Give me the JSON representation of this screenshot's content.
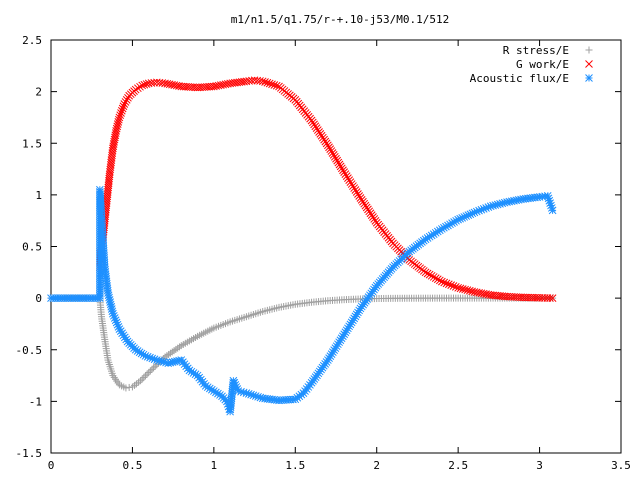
{
  "chart_data": {
    "type": "scatter",
    "title": "m1/n1.5/q1.75/r-+.10-j53/M0.1/512",
    "xlabel": "",
    "ylabel": "",
    "xlim": [
      0,
      3.5
    ],
    "ylim": [
      -1.5,
      2.5
    ],
    "x_ticks": [
      "0",
      "0.5",
      "1",
      "1.5",
      "2",
      "2.5",
      "3",
      "3.5"
    ],
    "y_ticks": [
      "2.5",
      "2",
      "1.5",
      "1",
      "0.5",
      "0",
      "-0.5",
      "-1",
      "-1.5"
    ],
    "grid": false,
    "legend_position": "top-right",
    "series": [
      {
        "name": "R stress/E",
        "marker": "plus",
        "color": "#a0a0a0",
        "x": [
          0.0,
          0.3,
          0.31,
          0.33,
          0.35,
          0.38,
          0.42,
          0.46,
          0.5,
          0.55,
          0.6,
          0.7,
          0.8,
          0.9,
          1.0,
          1.1,
          1.2,
          1.3,
          1.4,
          1.5,
          1.6,
          1.7,
          1.8,
          1.9,
          2.0,
          2.1,
          2.2,
          2.4,
          2.6,
          2.8,
          3.0,
          3.08
        ],
        "y": [
          0.0,
          0.0,
          -0.18,
          -0.4,
          -0.6,
          -0.75,
          -0.84,
          -0.87,
          -0.86,
          -0.8,
          -0.72,
          -0.57,
          -0.46,
          -0.37,
          -0.29,
          -0.23,
          -0.18,
          -0.13,
          -0.09,
          -0.06,
          -0.04,
          -0.025,
          -0.015,
          -0.008,
          -0.004,
          -0.002,
          -0.001,
          0.0,
          0.0,
          0.0,
          0.0,
          0.0
        ]
      },
      {
        "name": "G work/E",
        "marker": "cross",
        "color": "#ff0000",
        "x": [
          0.3,
          0.32,
          0.34,
          0.36,
          0.38,
          0.4,
          0.42,
          0.45,
          0.48,
          0.52,
          0.56,
          0.6,
          0.65,
          0.7,
          0.8,
          0.9,
          1.0,
          1.1,
          1.2,
          1.25,
          1.3,
          1.4,
          1.5,
          1.6,
          1.7,
          1.8,
          1.9,
          2.0,
          2.1,
          2.2,
          2.3,
          2.4,
          2.5,
          2.6,
          2.7,
          2.8,
          2.9,
          3.0,
          3.08
        ],
        "y": [
          0.3,
          0.6,
          0.9,
          1.2,
          1.45,
          1.62,
          1.75,
          1.88,
          1.96,
          2.02,
          2.06,
          2.08,
          2.09,
          2.08,
          2.05,
          2.04,
          2.05,
          2.08,
          2.1,
          2.11,
          2.1,
          2.05,
          1.92,
          1.72,
          1.48,
          1.22,
          0.97,
          0.73,
          0.53,
          0.37,
          0.25,
          0.16,
          0.1,
          0.06,
          0.03,
          0.015,
          0.007,
          0.003,
          0.0
        ]
      },
      {
        "name": "Acoustic flux/E",
        "marker": "star",
        "color": "#1e90ff",
        "x": [
          0.0,
          0.1,
          0.2,
          0.3,
          0.3,
          0.31,
          0.32,
          0.33,
          0.35,
          0.38,
          0.42,
          0.47,
          0.52,
          0.58,
          0.65,
          0.72,
          0.8,
          0.85,
          0.9,
          0.95,
          1.0,
          1.05,
          1.08,
          1.1,
          1.12,
          1.15,
          1.2,
          1.3,
          1.4,
          1.5,
          1.55,
          1.6,
          1.7,
          1.8,
          1.9,
          2.0,
          2.1,
          2.2,
          2.3,
          2.4,
          2.5,
          2.6,
          2.7,
          2.8,
          2.9,
          3.0,
          3.05,
          3.08
        ],
        "y": [
          0.0,
          0.0,
          0.0,
          0.0,
          1.05,
          0.8,
          0.55,
          0.3,
          0.05,
          -0.15,
          -0.3,
          -0.42,
          -0.5,
          -0.56,
          -0.6,
          -0.63,
          -0.6,
          -0.7,
          -0.75,
          -0.85,
          -0.9,
          -0.95,
          -1.0,
          -1.1,
          -0.8,
          -0.9,
          -0.92,
          -0.97,
          -0.99,
          -0.98,
          -0.92,
          -0.82,
          -0.6,
          -0.35,
          -0.1,
          0.12,
          0.3,
          0.45,
          0.57,
          0.67,
          0.76,
          0.83,
          0.89,
          0.93,
          0.96,
          0.98,
          0.99,
          0.85
        ]
      }
    ]
  }
}
